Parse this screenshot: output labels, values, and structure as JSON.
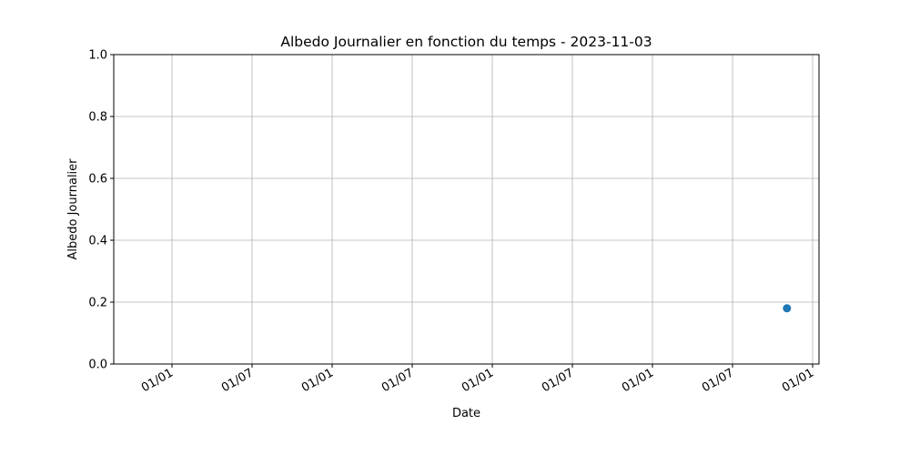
{
  "chart_data": {
    "type": "scatter",
    "title": "Albedo Journalier en fonction du temps - 2023-11-03",
    "xlabel": "Date",
    "ylabel": "Albedo Journalier",
    "x_tick_labels": [
      "01/01",
      "01/07",
      "01/01",
      "01/07",
      "01/01",
      "01/07",
      "01/01",
      "01/07",
      "01/01"
    ],
    "y_ticks": [
      "0.0",
      "0.2",
      "0.4",
      "0.6",
      "0.8",
      "1.0"
    ],
    "ylim": [
      0,
      1
    ],
    "grid": true,
    "series": [
      {
        "x": [
          "2023-11-03"
        ],
        "y": [
          0.18
        ]
      }
    ],
    "colors": {
      "marker": "#1f77b4",
      "grid": "#b0b0b0",
      "axis": "#000000"
    }
  }
}
